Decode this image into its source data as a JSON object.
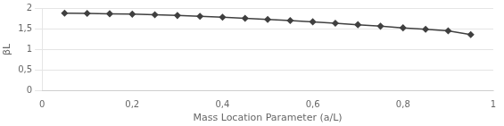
{
  "chart_data": {
    "type": "line",
    "xlabel": "Mass Location Parameter (a/L)",
    "ylabel": "βL",
    "x": [
      0.05,
      0.1,
      0.15,
      0.2,
      0.25,
      0.3,
      0.35,
      0.4,
      0.45,
      0.5,
      0.55,
      0.6,
      0.65,
      0.7,
      0.75,
      0.8,
      0.85,
      0.9,
      0.95
    ],
    "values": [
      1.875,
      1.87,
      1.862,
      1.852,
      1.838,
      1.82,
      1.8,
      1.778,
      1.753,
      1.726,
      1.698,
      1.668,
      1.635,
      1.598,
      1.562,
      1.523,
      1.487,
      1.45,
      1.36
    ],
    "color": "#404040",
    "marker": "diamond",
    "xlim": [
      0,
      1.0
    ],
    "ylim": [
      0,
      2.0
    ],
    "xticks": [
      0,
      {
        "value": 0.2,
        "label": "0,2"
      },
      {
        "value": 0.4,
        "label": "0,4"
      },
      {
        "value": 0.6,
        "label": "0,6"
      },
      {
        "value": 0.8,
        "label": "0,8"
      },
      1
    ],
    "yticks": [
      0,
      {
        "value": 0.5,
        "label": "0,5"
      },
      1,
      {
        "value": 1.5,
        "label": "1,5"
      },
      2
    ],
    "grid": "y"
  }
}
